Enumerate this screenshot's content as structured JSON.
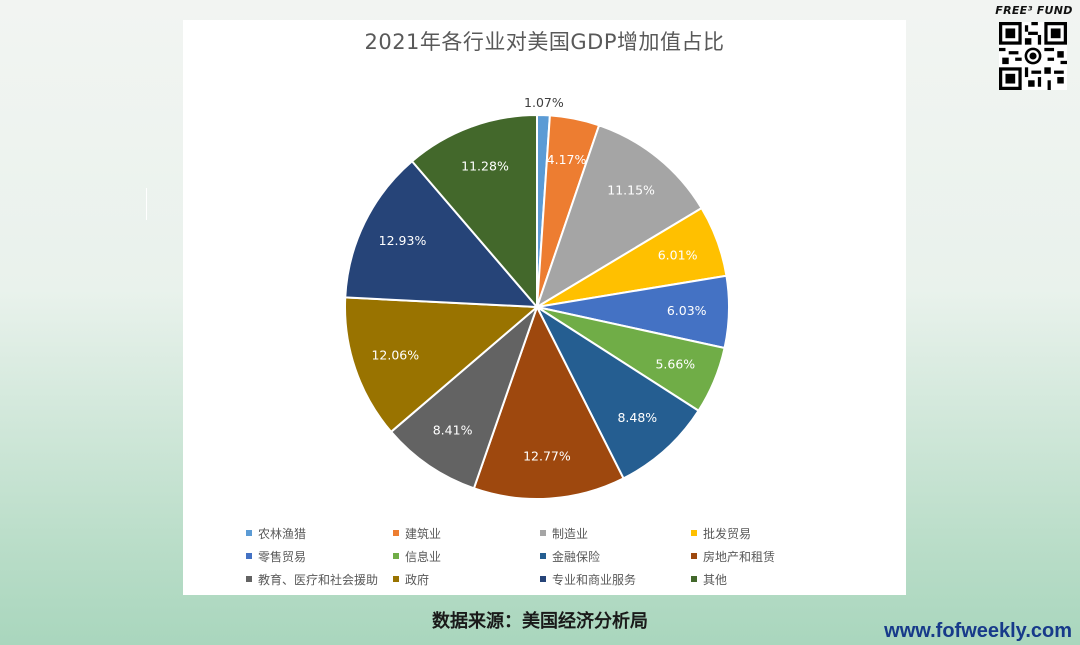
{
  "chart_data": {
    "type": "pie",
    "title": "2021年各行业对美国GDP增加值占比",
    "categories": [
      "农林渔猎",
      "建筑业",
      "制造业",
      "批发贸易",
      "零售贸易",
      "信息业",
      "金融保险",
      "房地产和租赁",
      "教育、医疗和社会援助",
      "政府",
      "专业和商业服务",
      "其他"
    ],
    "values": [
      1.07,
      4.17,
      11.15,
      6.01,
      6.03,
      5.66,
      8.48,
      12.77,
      8.41,
      12.06,
      12.93,
      11.28
    ],
    "labels": [
      "1.07%",
      "4.17%",
      "11.15%",
      "6.01%",
      "6.03%",
      "5.66%",
      "8.48%",
      "12.77%",
      "8.41%",
      "12.06%",
      "12.93%",
      "11.28%"
    ],
    "colors": [
      "#5B9BD5",
      "#ED7D31",
      "#A5A5A5",
      "#FFC000",
      "#4472C4",
      "#70AD47",
      "#255E91",
      "#9E480E",
      "#636363",
      "#997300",
      "#264478",
      "#43682B"
    ],
    "legend_position": "bottom"
  },
  "page": {
    "source_note": "数据来源：美国经济分析局",
    "brand": "FREE³ FUND",
    "url": "www.fofweekly.com"
  }
}
